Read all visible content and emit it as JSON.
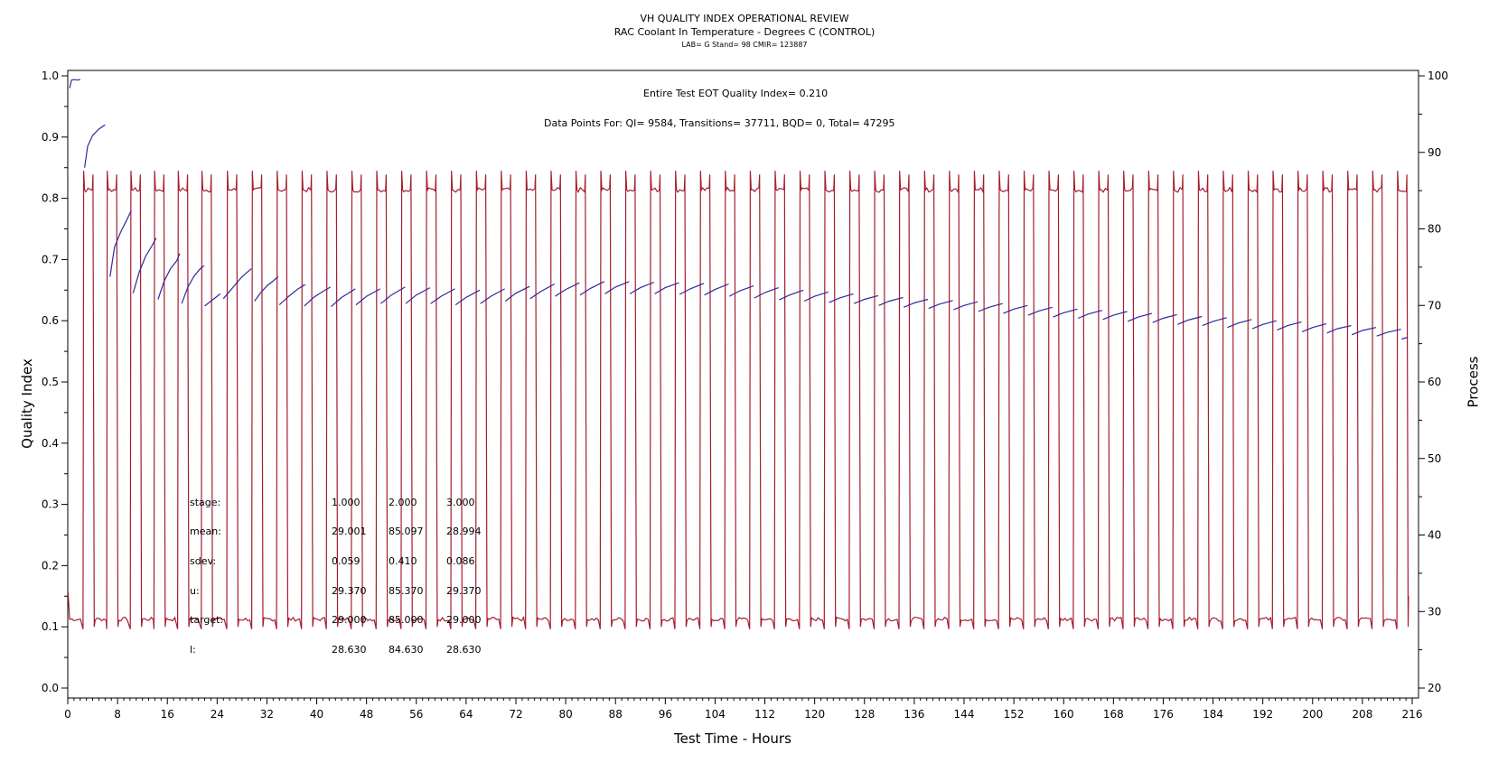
{
  "header": {
    "title": "VH QUALITY INDEX OPERATIONAL REVIEW",
    "subtitle": "RAC Coolant In Temperature - Degrees C (CONTROL)",
    "subtitle2": "LAB= G Stand= 98 CMIR= 123887"
  },
  "annotations": {
    "eot_quality": "Entire Test EOT Quality Index=   0.210",
    "data_points": "Data Points For: QI=   9584, Transitions= 37711, BQD=      0, Total= 47295"
  },
  "stats": {
    "rows": [
      {
        "label": "stage:",
        "values": [
          "1.000",
          "2.000",
          "3.000"
        ]
      },
      {
        "label": "mean:",
        "values": [
          "29.001",
          "85.097",
          "28.994"
        ]
      },
      {
        "label": "sdev:",
        "values": [
          "0.059",
          "0.410",
          "0.086"
        ]
      },
      {
        "label": "u:",
        "values": [
          "29.370",
          "85.370",
          "29.370"
        ]
      },
      {
        "label": "target:",
        "values": [
          "29.000",
          "85.000",
          "29.000"
        ]
      },
      {
        "label": "l:",
        "values": [
          "28.630",
          "84.630",
          "28.630"
        ]
      }
    ]
  },
  "chart_data": {
    "type": "line",
    "title": "VH QUALITY INDEX OPERATIONAL REVIEW",
    "subtitle": "RAC Coolant In Temperature - Degrees C (CONTROL)",
    "xlabel": "Test Time - Hours",
    "ylabel": "Quality Index",
    "y2label": "Process",
    "xlim": [
      0,
      216
    ],
    "ylim": [
      0.0,
      1.0
    ],
    "y2lim": [
      20,
      100
    ],
    "xticks": [
      "0",
      "8",
      "16",
      "24",
      "32",
      "40",
      "48",
      "56",
      "64",
      "72",
      "80",
      "88",
      "96",
      "104",
      "112",
      "120",
      "128",
      "136",
      "144",
      "152",
      "160",
      "168",
      "176",
      "184",
      "192",
      "200",
      "208",
      "216"
    ],
    "yticks": [
      "0.0",
      "0.1",
      "0.2",
      "0.3",
      "0.4",
      "0.5",
      "0.6",
      "0.7",
      "0.8",
      "0.9",
      "1.0"
    ],
    "y2ticks": [
      "20",
      "30",
      "40",
      "50",
      "60",
      "70",
      "80",
      "90",
      "100"
    ],
    "grid": false,
    "colors": {
      "quality_index": "#2b2b9c",
      "process": "#a51d2d"
    },
    "process": {
      "axis": "right",
      "low_level": 29.0,
      "high_level": 85.1,
      "high_hours": [
        2.5,
        6.3,
        10.1,
        13.9,
        17.7,
        21.5,
        25.6,
        29.6,
        33.6,
        37.6,
        41.6,
        45.6,
        49.6,
        53.6,
        57.6,
        61.6,
        65.6,
        69.6,
        73.6,
        77.6,
        81.6,
        85.6,
        89.6,
        93.6,
        97.6,
        101.6,
        105.6,
        109.6,
        113.6,
        117.6,
        121.6,
        125.6,
        129.6,
        133.6,
        137.6,
        141.6,
        145.6,
        149.6,
        153.6,
        157.6,
        161.6,
        165.6,
        169.6,
        173.6,
        177.6,
        181.6,
        185.6,
        189.6,
        193.6,
        197.6,
        201.6,
        205.6,
        209.6,
        213.6
      ],
      "high_duration_hours": 1.6,
      "end_hour": 215.4,
      "end_value": 32.0,
      "start_value": 32.5
    },
    "quality_index": {
      "axis": "left",
      "segments": [
        {
          "x": [
            0.3,
            0.6,
            1.0,
            1.5,
            2.0
          ],
          "y": [
            0.98,
            0.993,
            0.994,
            0.993,
            0.994
          ]
        },
        {
          "x": [
            2.7,
            3.2,
            4.0,
            5.0,
            6.0
          ],
          "y": [
            0.85,
            0.885,
            0.903,
            0.913,
            0.92
          ]
        },
        {
          "x": [
            6.8,
            7.5,
            8.5,
            9.5,
            10.2
          ],
          "y": [
            0.672,
            0.72,
            0.745,
            0.765,
            0.78
          ]
        },
        {
          "x": [
            10.5,
            11.5,
            12.5,
            13.5,
            14.2
          ],
          "y": [
            0.645,
            0.68,
            0.705,
            0.722,
            0.735
          ]
        },
        {
          "x": [
            14.5,
            15.5,
            16.5,
            17.5,
            18.0
          ],
          "y": [
            0.635,
            0.665,
            0.685,
            0.698,
            0.71
          ]
        },
        {
          "x": [
            18.3,
            19.3,
            20.3,
            21.3,
            21.9
          ],
          "y": [
            0.628,
            0.655,
            0.673,
            0.685,
            0.69
          ]
        },
        {
          "x": [
            22.0,
            23.0,
            24.0,
            24.5
          ],
          "y": [
            0.624,
            0.632,
            0.64,
            0.644
          ]
        },
        {
          "x": [
            25.0,
            26.0,
            27.0,
            28.0,
            29.5
          ],
          "y": [
            0.636,
            0.648,
            0.66,
            0.672,
            0.685
          ]
        },
        {
          "x": [
            30.0,
            31.0,
            32.0,
            33.0,
            33.8
          ],
          "y": [
            0.632,
            0.646,
            0.657,
            0.665,
            0.672
          ]
        },
        {
          "x": [
            34.0,
            35.5,
            37.0,
            38.0,
            37.8
          ],
          "y": [
            0.626,
            0.64,
            0.652,
            0.658,
            0.658
          ]
        },
        {
          "x": [
            38.0,
            39.5,
            41.0,
            42.2
          ],
          "y": [
            0.624,
            0.638,
            0.648,
            0.655
          ]
        },
        {
          "x": [
            42.3,
            44.0,
            46.2
          ],
          "y": [
            0.623,
            0.638,
            0.652
          ]
        },
        {
          "x": [
            46.3,
            48.0,
            50.2
          ],
          "y": [
            0.626,
            0.64,
            0.652
          ]
        },
        {
          "x": [
            50.3,
            52.0,
            54.2
          ],
          "y": [
            0.628,
            0.642,
            0.655
          ]
        },
        {
          "x": [
            54.3,
            56.0,
            58.2
          ],
          "y": [
            0.628,
            0.642,
            0.654
          ]
        },
        {
          "x": [
            58.3,
            60.0,
            62.2
          ],
          "y": [
            0.628,
            0.64,
            0.652
          ]
        },
        {
          "x": [
            62.3,
            64.0,
            66.2
          ],
          "y": [
            0.626,
            0.638,
            0.65
          ]
        },
        {
          "x": [
            66.3,
            68.0,
            70.2
          ],
          "y": [
            0.628,
            0.64,
            0.652
          ]
        },
        {
          "x": [
            70.3,
            72.0,
            74.2
          ],
          "y": [
            0.632,
            0.645,
            0.656
          ]
        },
        {
          "x": [
            74.3,
            76.0,
            78.2
          ],
          "y": [
            0.636,
            0.648,
            0.66
          ]
        },
        {
          "x": [
            78.3,
            80.0,
            82.2
          ],
          "y": [
            0.64,
            0.651,
            0.662
          ]
        },
        {
          "x": [
            82.3,
            84.0,
            86.2
          ],
          "y": [
            0.642,
            0.653,
            0.664
          ]
        },
        {
          "x": [
            86.3,
            88.0,
            90.2
          ],
          "y": [
            0.644,
            0.655,
            0.664
          ]
        },
        {
          "x": [
            90.3,
            92.0,
            94.2
          ],
          "y": [
            0.644,
            0.654,
            0.663
          ]
        },
        {
          "x": [
            94.3,
            96.0,
            98.2
          ],
          "y": [
            0.644,
            0.654,
            0.662
          ]
        },
        {
          "x": [
            98.3,
            100.0,
            102.2
          ],
          "y": [
            0.643,
            0.652,
            0.661
          ]
        },
        {
          "x": [
            102.3,
            104.0,
            106.2
          ],
          "y": [
            0.642,
            0.651,
            0.66
          ]
        },
        {
          "x": [
            106.3,
            108.0,
            110.2
          ],
          "y": [
            0.64,
            0.649,
            0.657
          ]
        },
        {
          "x": [
            110.3,
            112.0,
            114.2
          ],
          "y": [
            0.637,
            0.646,
            0.654
          ]
        },
        {
          "x": [
            114.3,
            116.0,
            118.2
          ],
          "y": [
            0.634,
            0.642,
            0.65
          ]
        },
        {
          "x": [
            118.3,
            120.0,
            122.2
          ],
          "y": [
            0.632,
            0.64,
            0.647
          ]
        },
        {
          "x": [
            122.3,
            124.0,
            126.2
          ],
          "y": [
            0.63,
            0.637,
            0.644
          ]
        },
        {
          "x": [
            126.3,
            128.0,
            130.2
          ],
          "y": [
            0.628,
            0.635,
            0.641
          ]
        },
        {
          "x": [
            130.3,
            132.0,
            134.2
          ],
          "y": [
            0.625,
            0.632,
            0.638
          ]
        },
        {
          "x": [
            134.3,
            136.0,
            138.2
          ],
          "y": [
            0.622,
            0.629,
            0.635
          ]
        },
        {
          "x": [
            138.3,
            140.0,
            142.2
          ],
          "y": [
            0.62,
            0.627,
            0.633
          ]
        },
        {
          "x": [
            142.3,
            144.0,
            146.2
          ],
          "y": [
            0.618,
            0.625,
            0.631
          ]
        },
        {
          "x": [
            146.3,
            148.0,
            150.2
          ],
          "y": [
            0.615,
            0.622,
            0.628
          ]
        },
        {
          "x": [
            150.3,
            152.0,
            154.2
          ],
          "y": [
            0.612,
            0.619,
            0.625
          ]
        },
        {
          "x": [
            154.3,
            156.0,
            158.2
          ],
          "y": [
            0.609,
            0.616,
            0.622
          ]
        },
        {
          "x": [
            158.3,
            160.0,
            162.2
          ],
          "y": [
            0.606,
            0.613,
            0.619
          ]
        },
        {
          "x": [
            162.3,
            164.0,
            166.2
          ],
          "y": [
            0.604,
            0.611,
            0.617
          ]
        },
        {
          "x": [
            166.3,
            168.0,
            170.2
          ],
          "y": [
            0.602,
            0.609,
            0.615
          ]
        },
        {
          "x": [
            170.3,
            172.0,
            174.2
          ],
          "y": [
            0.599,
            0.606,
            0.612
          ]
        },
        {
          "x": [
            174.3,
            176.0,
            178.2
          ],
          "y": [
            0.597,
            0.604,
            0.61
          ]
        },
        {
          "x": [
            178.3,
            180.0,
            182.2
          ],
          "y": [
            0.594,
            0.601,
            0.607
          ]
        },
        {
          "x": [
            182.3,
            184.0,
            186.2
          ],
          "y": [
            0.592,
            0.599,
            0.605
          ]
        },
        {
          "x": [
            186.3,
            188.0,
            190.2
          ],
          "y": [
            0.589,
            0.596,
            0.602
          ]
        },
        {
          "x": [
            190.3,
            192.0,
            194.2
          ],
          "y": [
            0.587,
            0.594,
            0.6
          ]
        },
        {
          "x": [
            194.3,
            196.0,
            198.2
          ],
          "y": [
            0.585,
            0.592,
            0.598
          ]
        },
        {
          "x": [
            198.3,
            200.0,
            202.2
          ],
          "y": [
            0.582,
            0.589,
            0.595
          ]
        },
        {
          "x": [
            202.3,
            204.0,
            206.2
          ],
          "y": [
            0.58,
            0.587,
            0.592
          ]
        },
        {
          "x": [
            206.3,
            208.0,
            210.2
          ],
          "y": [
            0.577,
            0.584,
            0.589
          ]
        },
        {
          "x": [
            210.3,
            212.0,
            214.2
          ],
          "y": [
            0.575,
            0.581,
            0.586
          ]
        },
        {
          "x": [
            214.3,
            215.3
          ],
          "y": [
            0.57,
            0.573
          ]
        }
      ]
    }
  }
}
